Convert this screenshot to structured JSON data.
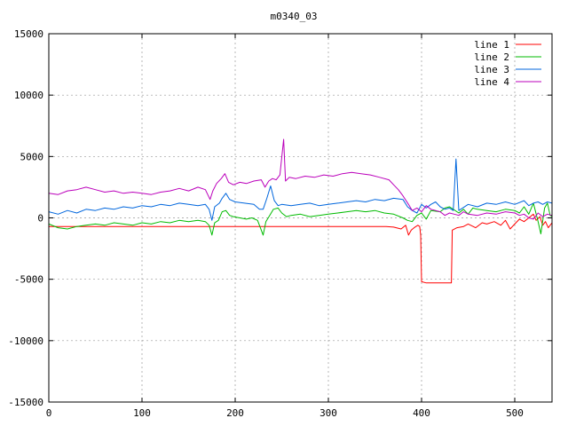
{
  "chart_data": {
    "type": "line",
    "title": "m0340_03",
    "xlabel": "",
    "ylabel": "",
    "xlim": [
      0,
      540
    ],
    "ylim": [
      -15000,
      15000
    ],
    "xticks": [
      0,
      100,
      200,
      300,
      400,
      500
    ],
    "yticks": [
      -15000,
      -10000,
      -5000,
      0,
      5000,
      10000,
      15000
    ],
    "grid": true,
    "legend_position": "top-right",
    "series": [
      {
        "name": "line 1",
        "color": "#ff0000",
        "points": [
          [
            0,
            -700
          ],
          [
            20,
            -700
          ],
          [
            50,
            -700
          ],
          [
            100,
            -700
          ],
          [
            150,
            -700
          ],
          [
            200,
            -700
          ],
          [
            250,
            -700
          ],
          [
            300,
            -700
          ],
          [
            350,
            -700
          ],
          [
            362,
            -700
          ],
          [
            370,
            -750
          ],
          [
            378,
            -900
          ],
          [
            383,
            -600
          ],
          [
            386,
            -1400
          ],
          [
            389,
            -1000
          ],
          [
            392,
            -800
          ],
          [
            396,
            -600
          ],
          [
            398,
            -700
          ],
          [
            399,
            -1400
          ],
          [
            400,
            -5200
          ],
          [
            405,
            -5300
          ],
          [
            420,
            -5300
          ],
          [
            432,
            -5300
          ],
          [
            433,
            -1000
          ],
          [
            438,
            -800
          ],
          [
            445,
            -700
          ],
          [
            450,
            -500
          ],
          [
            458,
            -800
          ],
          [
            465,
            -400
          ],
          [
            470,
            -500
          ],
          [
            478,
            -300
          ],
          [
            485,
            -600
          ],
          [
            490,
            -200
          ],
          [
            495,
            -900
          ],
          [
            500,
            -500
          ],
          [
            505,
            -100
          ],
          [
            510,
            -300
          ],
          [
            515,
            0
          ],
          [
            520,
            300
          ],
          [
            523,
            -200
          ],
          [
            527,
            100
          ],
          [
            530,
            -600
          ],
          [
            533,
            -300
          ],
          [
            536,
            -800
          ],
          [
            540,
            -400
          ]
        ]
      },
      {
        "name": "line 2",
        "color": "#00bb00",
        "points": [
          [
            0,
            -500
          ],
          [
            10,
            -800
          ],
          [
            20,
            -900
          ],
          [
            30,
            -700
          ],
          [
            40,
            -600
          ],
          [
            50,
            -500
          ],
          [
            60,
            -600
          ],
          [
            70,
            -400
          ],
          [
            80,
            -500
          ],
          [
            90,
            -600
          ],
          [
            100,
            -400
          ],
          [
            110,
            -500
          ],
          [
            120,
            -300
          ],
          [
            130,
            -400
          ],
          [
            140,
            -200
          ],
          [
            150,
            -300
          ],
          [
            160,
            -200
          ],
          [
            168,
            -300
          ],
          [
            172,
            -600
          ],
          [
            175,
            -1400
          ],
          [
            178,
            -400
          ],
          [
            182,
            -200
          ],
          [
            186,
            500
          ],
          [
            190,
            600
          ],
          [
            194,
            200
          ],
          [
            198,
            100
          ],
          [
            205,
            0
          ],
          [
            212,
            -100
          ],
          [
            218,
            0
          ],
          [
            224,
            -200
          ],
          [
            228,
            -1000
          ],
          [
            230,
            -1400
          ],
          [
            233,
            -300
          ],
          [
            237,
            200
          ],
          [
            241,
            700
          ],
          [
            246,
            800
          ],
          [
            250,
            400
          ],
          [
            255,
            100
          ],
          [
            260,
            200
          ],
          [
            270,
            300
          ],
          [
            280,
            100
          ],
          [
            290,
            200
          ],
          [
            300,
            300
          ],
          [
            310,
            400
          ],
          [
            320,
            500
          ],
          [
            330,
            600
          ],
          [
            340,
            500
          ],
          [
            350,
            600
          ],
          [
            360,
            400
          ],
          [
            370,
            300
          ],
          [
            380,
            0
          ],
          [
            385,
            -200
          ],
          [
            390,
            -300
          ],
          [
            395,
            200
          ],
          [
            400,
            400
          ],
          [
            405,
            -100
          ],
          [
            410,
            600
          ],
          [
            420,
            500
          ],
          [
            425,
            800
          ],
          [
            430,
            900
          ],
          [
            440,
            400
          ],
          [
            445,
            700
          ],
          [
            450,
            300
          ],
          [
            455,
            800
          ],
          [
            460,
            700
          ],
          [
            470,
            600
          ],
          [
            480,
            500
          ],
          [
            490,
            700
          ],
          [
            500,
            600
          ],
          [
            505,
            400
          ],
          [
            510,
            900
          ],
          [
            515,
            300
          ],
          [
            520,
            1200
          ],
          [
            525,
            -300
          ],
          [
            528,
            -1300
          ],
          [
            532,
            800
          ],
          [
            535,
            1200
          ],
          [
            538,
            200
          ],
          [
            540,
            100
          ]
        ]
      },
      {
        "name": "line 3",
        "color": "#0066dd",
        "points": [
          [
            0,
            500
          ],
          [
            10,
            300
          ],
          [
            20,
            600
          ],
          [
            30,
            400
          ],
          [
            40,
            700
          ],
          [
            50,
            600
          ],
          [
            60,
            800
          ],
          [
            70,
            700
          ],
          [
            80,
            900
          ],
          [
            90,
            800
          ],
          [
            100,
            1000
          ],
          [
            110,
            900
          ],
          [
            120,
            1100
          ],
          [
            130,
            1000
          ],
          [
            140,
            1200
          ],
          [
            150,
            1100
          ],
          [
            160,
            1000
          ],
          [
            168,
            1100
          ],
          [
            172,
            700
          ],
          [
            175,
            -200
          ],
          [
            178,
            900
          ],
          [
            183,
            1200
          ],
          [
            186,
            1600
          ],
          [
            190,
            2000
          ],
          [
            194,
            1500
          ],
          [
            200,
            1300
          ],
          [
            210,
            1200
          ],
          [
            220,
            1100
          ],
          [
            226,
            700
          ],
          [
            230,
            700
          ],
          [
            234,
            1600
          ],
          [
            238,
            2600
          ],
          [
            242,
            1400
          ],
          [
            246,
            1000
          ],
          [
            250,
            1100
          ],
          [
            260,
            1000
          ],
          [
            270,
            1100
          ],
          [
            280,
            1200
          ],
          [
            290,
            1000
          ],
          [
            300,
            1100
          ],
          [
            310,
            1200
          ],
          [
            320,
            1300
          ],
          [
            330,
            1400
          ],
          [
            340,
            1300
          ],
          [
            350,
            1500
          ],
          [
            360,
            1400
          ],
          [
            370,
            1600
          ],
          [
            380,
            1500
          ],
          [
            385,
            900
          ],
          [
            390,
            600
          ],
          [
            395,
            400
          ],
          [
            400,
            1100
          ],
          [
            405,
            800
          ],
          [
            410,
            1100
          ],
          [
            415,
            1300
          ],
          [
            420,
            900
          ],
          [
            425,
            700
          ],
          [
            430,
            800
          ],
          [
            434,
            600
          ],
          [
            437,
            4800
          ],
          [
            440,
            600
          ],
          [
            444,
            800
          ],
          [
            450,
            1100
          ],
          [
            460,
            900
          ],
          [
            470,
            1200
          ],
          [
            480,
            1100
          ],
          [
            490,
            1300
          ],
          [
            500,
            1100
          ],
          [
            510,
            1400
          ],
          [
            515,
            1000
          ],
          [
            520,
            1200
          ],
          [
            525,
            1300
          ],
          [
            530,
            1100
          ],
          [
            535,
            1300
          ],
          [
            540,
            1200
          ]
        ]
      },
      {
        "name": "line 4",
        "color": "#bb00bb",
        "points": [
          [
            0,
            2000
          ],
          [
            10,
            1900
          ],
          [
            20,
            2200
          ],
          [
            30,
            2300
          ],
          [
            40,
            2500
          ],
          [
            50,
            2300
          ],
          [
            60,
            2100
          ],
          [
            70,
            2200
          ],
          [
            80,
            2000
          ],
          [
            90,
            2100
          ],
          [
            100,
            2000
          ],
          [
            110,
            1900
          ],
          [
            120,
            2100
          ],
          [
            130,
            2200
          ],
          [
            140,
            2400
          ],
          [
            150,
            2200
          ],
          [
            160,
            2500
          ],
          [
            168,
            2300
          ],
          [
            173,
            1500
          ],
          [
            176,
            2200
          ],
          [
            180,
            2800
          ],
          [
            185,
            3200
          ],
          [
            189,
            3600
          ],
          [
            193,
            2900
          ],
          [
            198,
            2700
          ],
          [
            205,
            2900
          ],
          [
            212,
            2800
          ],
          [
            220,
            3000
          ],
          [
            228,
            3100
          ],
          [
            232,
            2500
          ],
          [
            236,
            3000
          ],
          [
            240,
            3200
          ],
          [
            244,
            3100
          ],
          [
            248,
            3500
          ],
          [
            252,
            6400
          ],
          [
            254,
            3000
          ],
          [
            258,
            3300
          ],
          [
            265,
            3200
          ],
          [
            275,
            3400
          ],
          [
            285,
            3300
          ],
          [
            295,
            3500
          ],
          [
            305,
            3400
          ],
          [
            315,
            3600
          ],
          [
            325,
            3700
          ],
          [
            335,
            3600
          ],
          [
            345,
            3500
          ],
          [
            355,
            3300
          ],
          [
            365,
            3100
          ],
          [
            370,
            2700
          ],
          [
            375,
            2300
          ],
          [
            380,
            1800
          ],
          [
            386,
            1100
          ],
          [
            390,
            600
          ],
          [
            395,
            800
          ],
          [
            400,
            500
          ],
          [
            405,
            1000
          ],
          [
            410,
            700
          ],
          [
            415,
            600
          ],
          [
            420,
            500
          ],
          [
            425,
            200
          ],
          [
            430,
            400
          ],
          [
            435,
            300
          ],
          [
            440,
            200
          ],
          [
            445,
            500
          ],
          [
            450,
            300
          ],
          [
            460,
            200
          ],
          [
            470,
            400
          ],
          [
            480,
            300
          ],
          [
            490,
            500
          ],
          [
            500,
            400
          ],
          [
            505,
            200
          ],
          [
            510,
            300
          ],
          [
            515,
            0
          ],
          [
            520,
            -100
          ],
          [
            525,
            400
          ],
          [
            530,
            100
          ],
          [
            535,
            300
          ],
          [
            540,
            200
          ]
        ]
      }
    ]
  }
}
